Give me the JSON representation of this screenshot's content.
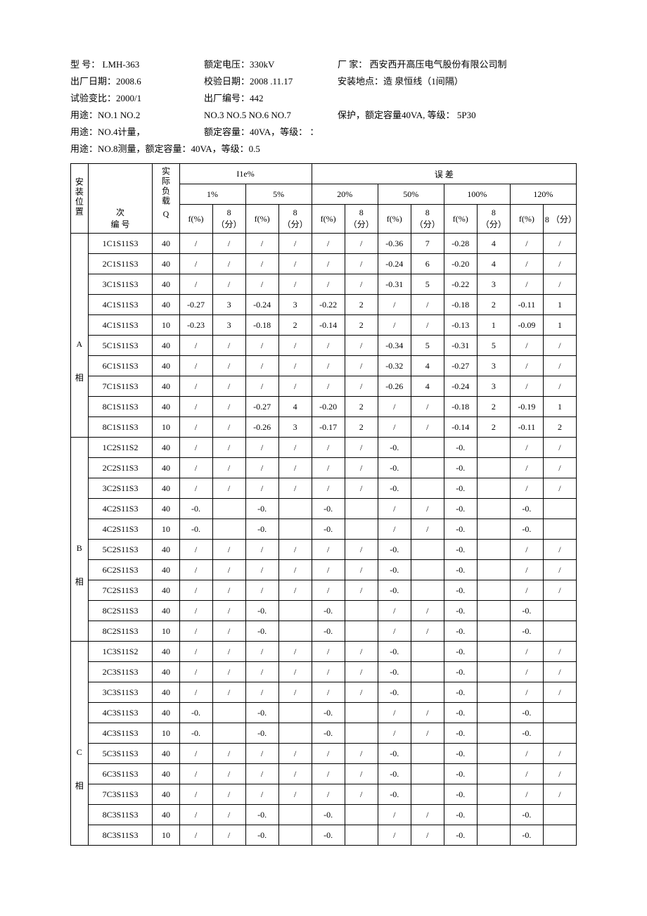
{
  "header": {
    "model_label": "型 号：",
    "model": "LMH-363",
    "rated_voltage_label": "额定电压：",
    "rated_voltage": "330kV",
    "maker_label": "厂 家：",
    "maker": "西安西开高压电气股份有限公司制",
    "factory_date_label": "出厂日期：",
    "factory_date": "2008.6",
    "cal_date_label": "校验日期：",
    "cal_date": "2008 .11.17",
    "install_loc_label": "安装地点：",
    "install_loc": "造 泉恒线（1间隔）",
    "ratio_label": "试验变比：",
    "ratio": "2000/1",
    "factory_no_label": "出厂编号：",
    "factory_no": "442",
    "use1_label": "用途：",
    "use1_a": "NO.1 NO.2",
    "use1_b": "NO.3 NO.5 NO.6 NO.7",
    "use1_c": "保护，额定容量40VA, 等级： 5P30",
    "use2": "用途：NO.4计量，",
    "use2b": "额定容量：40VA，等级： ：",
    "use3": "用途：NO.8测量，额定容量：40VA，等级：0.5"
  },
  "table": {
    "h_pos": "安装位置",
    "h_id_top": "次",
    "h_id_bot": "编 号",
    "h_q_top": "实际负载",
    "h_q_bot": "Q",
    "h_i1e": "I1e%",
    "h_err": "误    差",
    "cols_pct": [
      "1%",
      "5%",
      "20%",
      "50%",
      "100%",
      "120%"
    ],
    "h_f": "f(%)",
    "h_d": "8 （分）",
    "h_d_short": "8",
    "h_d_unit": "（分）",
    "groups": [
      {
        "pos": "A",
        "pos2": "相",
        "rows": [
          {
            "id": "1C1S11S3",
            "q": "40",
            "v": [
              "/",
              "/",
              "/",
              "/",
              "/",
              "/",
              "-0.36",
              "7",
              "-0.28",
              "4",
              "/",
              "/"
            ]
          },
          {
            "id": "2C1S11S3",
            "q": "40",
            "v": [
              "/",
              "/",
              "/",
              "/",
              "/",
              "/",
              "-0.24",
              "6",
              "-0.20",
              "4",
              "/",
              "/"
            ]
          },
          {
            "id": "3C1S11S3",
            "q": "40",
            "v": [
              "/",
              "/",
              "/",
              "/",
              "/",
              "/",
              "-0.31",
              "5",
              "-0.22",
              "3",
              "/",
              "/"
            ]
          },
          {
            "id": "4C1S11S3",
            "q": "40",
            "v": [
              "-0.27",
              "3",
              "-0.24",
              "3",
              "-0.22",
              "2",
              "/",
              "/",
              "-0.18",
              "2",
              "-0.11",
              "1"
            ]
          },
          {
            "id": "4C1S11S3",
            "q": "10",
            "v": [
              "-0.23",
              "3",
              "-0.18",
              "2",
              "-0.14",
              "2",
              "/",
              "/",
              "-0.13",
              "1",
              "-0.09",
              "1"
            ]
          },
          {
            "id": "5C1S11S3",
            "q": "40",
            "v": [
              "/",
              "/",
              "/",
              "/",
              "/",
              "/",
              "-0.34",
              "5",
              "-0.31",
              "5",
              "/",
              "/"
            ]
          },
          {
            "id": "6C1S11S3",
            "q": "40",
            "v": [
              "/",
              "/",
              "/",
              "/",
              "/",
              "/",
              "-0.32",
              "4",
              "-0.27",
              "3",
              "/",
              "/"
            ]
          },
          {
            "id": "7C1S11S3",
            "q": "40",
            "v": [
              "/",
              "/",
              "/",
              "/",
              "/",
              "/",
              "-0.26",
              "4",
              "-0.24",
              "3",
              "/",
              "/"
            ]
          },
          {
            "id": "8C1S11S3",
            "q": "40",
            "v": [
              "/",
              "/",
              "-0.27",
              "4",
              "-0.20",
              "2",
              "/",
              "/",
              "-0.18",
              "2",
              "-0.19",
              "1"
            ]
          },
          {
            "id": "8C1S11S3",
            "q": "10",
            "v": [
              "/",
              "/",
              "-0.26",
              "3",
              "-0.17",
              "2",
              "/",
              "/",
              "-0.14",
              "2",
              "-0.11",
              "2"
            ]
          }
        ]
      },
      {
        "pos": "B",
        "pos2": "相",
        "rows": [
          {
            "id": "1C2S11S2",
            "q": "40",
            "v": [
              "/",
              "/",
              "/",
              "/",
              "/",
              "/",
              "-0.",
              "",
              "-0.",
              "",
              "/",
              "/"
            ]
          },
          {
            "id": "2C2S11S3",
            "q": "40",
            "v": [
              "/",
              "/",
              "/",
              "/",
              "/",
              "/",
              "-0.",
              "",
              "-0.",
              "",
              "/",
              "/"
            ]
          },
          {
            "id": "3C2S11S3",
            "q": "40",
            "v": [
              "/",
              "/",
              "/",
              "/",
              "/",
              "/",
              "-0.",
              "",
              "-0.",
              "",
              "/",
              "/"
            ]
          },
          {
            "id": "4C2S11S3",
            "q": "40",
            "v": [
              "-0.",
              "",
              "-0.",
              "",
              "-0.",
              "",
              "/",
              "/",
              "-0.",
              "",
              "-0.",
              ""
            ]
          },
          {
            "id": "4C2S11S3",
            "q": "10",
            "v": [
              "-0.",
              "",
              "-0.",
              "",
              "-0.",
              "",
              "/",
              "/",
              "-0.",
              "",
              "-0.",
              ""
            ]
          },
          {
            "id": "5C2S11S3",
            "q": "40",
            "v": [
              "/",
              "/",
              "/",
              "/",
              "/",
              "/",
              "-0.",
              "",
              "-0.",
              "",
              "/",
              "/"
            ]
          },
          {
            "id": "6C2S11S3",
            "q": "40",
            "v": [
              "/",
              "/",
              "/",
              "/",
              "/",
              "/",
              "-0.",
              "",
              "-0.",
              "",
              "/",
              "/"
            ]
          },
          {
            "id": "7C2S11S3",
            "q": "40",
            "v": [
              "/",
              "/",
              "/",
              "/",
              "/",
              "/",
              "-0.",
              "",
              "-0.",
              "",
              "/",
              "/"
            ]
          },
          {
            "id": "8C2S11S3",
            "q": "40",
            "v": [
              "/",
              "/",
              "-0.",
              "",
              "-0.",
              "",
              "/",
              "/",
              "-0.",
              "",
              "-0.",
              ""
            ]
          },
          {
            "id": "8C2S11S3",
            "q": "10",
            "v": [
              "/",
              "/",
              "-0.",
              "",
              "-0.",
              "",
              "/",
              "/",
              "-0.",
              "",
              "-0.",
              ""
            ]
          }
        ]
      },
      {
        "pos": "C",
        "pos2": "相",
        "rows": [
          {
            "id": "1C3S11S2",
            "q": "40",
            "v": [
              "/",
              "/",
              "/",
              "/",
              "/",
              "/",
              "-0.",
              "",
              "-0.",
              "",
              "/",
              "/"
            ]
          },
          {
            "id": "2C3S11S3",
            "q": "40",
            "v": [
              "/",
              "/",
              "/",
              "/",
              "/",
              "/",
              "-0.",
              "",
              "-0.",
              "",
              "/",
              "/"
            ]
          },
          {
            "id": "3C3S11S3",
            "q": "40",
            "v": [
              "/",
              "/",
              "/",
              "/",
              "/",
              "/",
              "-0.",
              "",
              "-0.",
              "",
              "/",
              "/"
            ]
          },
          {
            "id": "4C3S11S3",
            "q": "40",
            "v": [
              "-0.",
              "",
              "-0.",
              "",
              "-0.",
              "",
              "/",
              "/",
              "-0.",
              "",
              "-0.",
              ""
            ]
          },
          {
            "id": "4C3S11S3",
            "q": "10",
            "v": [
              "-0.",
              "",
              "-0.",
              "",
              "-0.",
              "",
              "/",
              "/",
              "-0.",
              "",
              "-0.",
              ""
            ]
          },
          {
            "id": "5C3S11S3",
            "q": "40",
            "v": [
              "/",
              "/",
              "/",
              "/",
              "/",
              "/",
              "-0.",
              "",
              "-0.",
              "",
              "/",
              "/"
            ]
          },
          {
            "id": "6C3S11S3",
            "q": "40",
            "v": [
              "/",
              "/",
              "/",
              "/",
              "/",
              "/",
              "-0.",
              "",
              "-0.",
              "",
              "/",
              "/"
            ]
          },
          {
            "id": "7C3S11S3",
            "q": "40",
            "v": [
              "/",
              "/",
              "/",
              "/",
              "/",
              "/",
              "-0.",
              "",
              "-0.",
              "",
              "/",
              "/"
            ]
          },
          {
            "id": "8C3S11S3",
            "q": "40",
            "v": [
              "/",
              "/",
              "-0.",
              "",
              "-0.",
              "",
              "/",
              "/",
              "-0.",
              "",
              "-0.",
              ""
            ]
          },
          {
            "id": "8C3S11S3",
            "q": "10",
            "v": [
              "/",
              "/",
              "-0.",
              "",
              "-0.",
              "",
              "/",
              "/",
              "-0.",
              "",
              "-0.",
              ""
            ]
          }
        ]
      }
    ]
  }
}
